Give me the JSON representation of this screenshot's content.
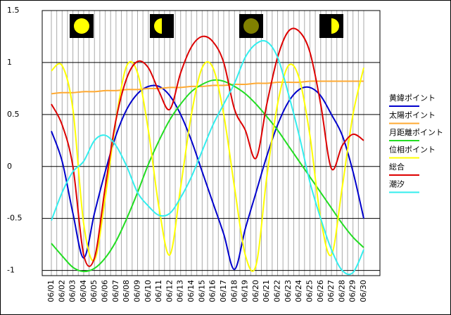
{
  "chart_data": {
    "type": "line",
    "categories": [
      "06/01",
      "06/02",
      "06/03",
      "06/04",
      "06/05",
      "06/06",
      "06/07",
      "06/08",
      "06/09",
      "06/10",
      "06/11",
      "06/12",
      "06/13",
      "06/14",
      "06/15",
      "06/16",
      "06/17",
      "06/18",
      "06/19",
      "06/20",
      "06/21",
      "06/22",
      "06/23",
      "06/24",
      "06/25",
      "06/26",
      "06/27",
      "06/28",
      "06/29",
      "06/30"
    ],
    "series": [
      {
        "name": "黄緯ポイント",
        "color": "#0000cc",
        "values": [
          0.34,
          0.05,
          -0.45,
          -0.88,
          -0.45,
          -0.05,
          0.3,
          0.55,
          0.7,
          0.77,
          0.77,
          0.68,
          0.5,
          0.25,
          -0.05,
          -0.35,
          -0.65,
          -0.99,
          -0.6,
          -0.25,
          0.1,
          0.4,
          0.62,
          0.74,
          0.76,
          0.68,
          0.5,
          0.3,
          -0.05,
          -0.5
        ]
      },
      {
        "name": "太陽ポイント",
        "color": "#ffaa33",
        "values": [
          0.7,
          0.71,
          0.71,
          0.72,
          0.72,
          0.73,
          0.73,
          0.74,
          0.74,
          0.75,
          0.75,
          0.76,
          0.76,
          0.77,
          0.77,
          0.78,
          0.78,
          0.79,
          0.79,
          0.8,
          0.8,
          0.81,
          0.81,
          0.81,
          0.82,
          0.82,
          0.82,
          0.82,
          0.82,
          0.82
        ]
      },
      {
        "name": "月距離ポイント",
        "color": "#22dd22",
        "values": [
          -0.74,
          -0.86,
          -0.97,
          -1.01,
          -0.98,
          -0.88,
          -0.72,
          -0.5,
          -0.25,
          0.02,
          0.25,
          0.45,
          0.6,
          0.72,
          0.79,
          0.83,
          0.82,
          0.77,
          0.7,
          0.6,
          0.48,
          0.35,
          0.2,
          0.05,
          -0.1,
          -0.25,
          -0.4,
          -0.55,
          -0.68,
          -0.78
        ]
      },
      {
        "name": "位相ポイント",
        "color": "#ffff00",
        "values": [
          0.92,
          0.97,
          0.55,
          -0.55,
          -0.9,
          -0.3,
          0.45,
          0.97,
          0.9,
          0.35,
          -0.4,
          -0.85,
          -0.2,
          0.5,
          0.95,
          0.95,
          0.5,
          -0.2,
          -0.85,
          -0.95,
          -0.1,
          0.6,
          0.97,
          0.85,
          0.3,
          -0.5,
          -0.85,
          -0.2,
          0.5,
          0.95
        ]
      },
      {
        "name": "総合",
        "color": "#dd0000",
        "values": [
          0.6,
          0.4,
          0.0,
          -0.85,
          -0.88,
          -0.2,
          0.45,
          0.85,
          1.01,
          0.95,
          0.72,
          0.55,
          0.9,
          1.15,
          1.25,
          1.2,
          1.0,
          0.55,
          0.35,
          0.08,
          0.6,
          1.05,
          1.3,
          1.3,
          1.1,
          0.6,
          -0.02,
          0.2,
          0.31,
          0.25
        ]
      },
      {
        "name": "潮汐",
        "color": "#33eeee",
        "values": [
          -0.52,
          -0.25,
          -0.05,
          0.05,
          0.25,
          0.3,
          0.2,
          0.0,
          -0.25,
          -0.38,
          -0.47,
          -0.45,
          -0.3,
          -0.1,
          0.15,
          0.4,
          0.6,
          0.8,
          1.05,
          1.18,
          1.2,
          1.05,
          0.7,
          0.3,
          -0.15,
          -0.5,
          -0.8,
          -1.0,
          -1.02,
          -0.8
        ]
      }
    ],
    "ylim": [
      -1.05,
      1.5
    ],
    "yticks": [
      1.5,
      1,
      0.5,
      0,
      -0.5,
      -1
    ],
    "grid": true
  }
}
